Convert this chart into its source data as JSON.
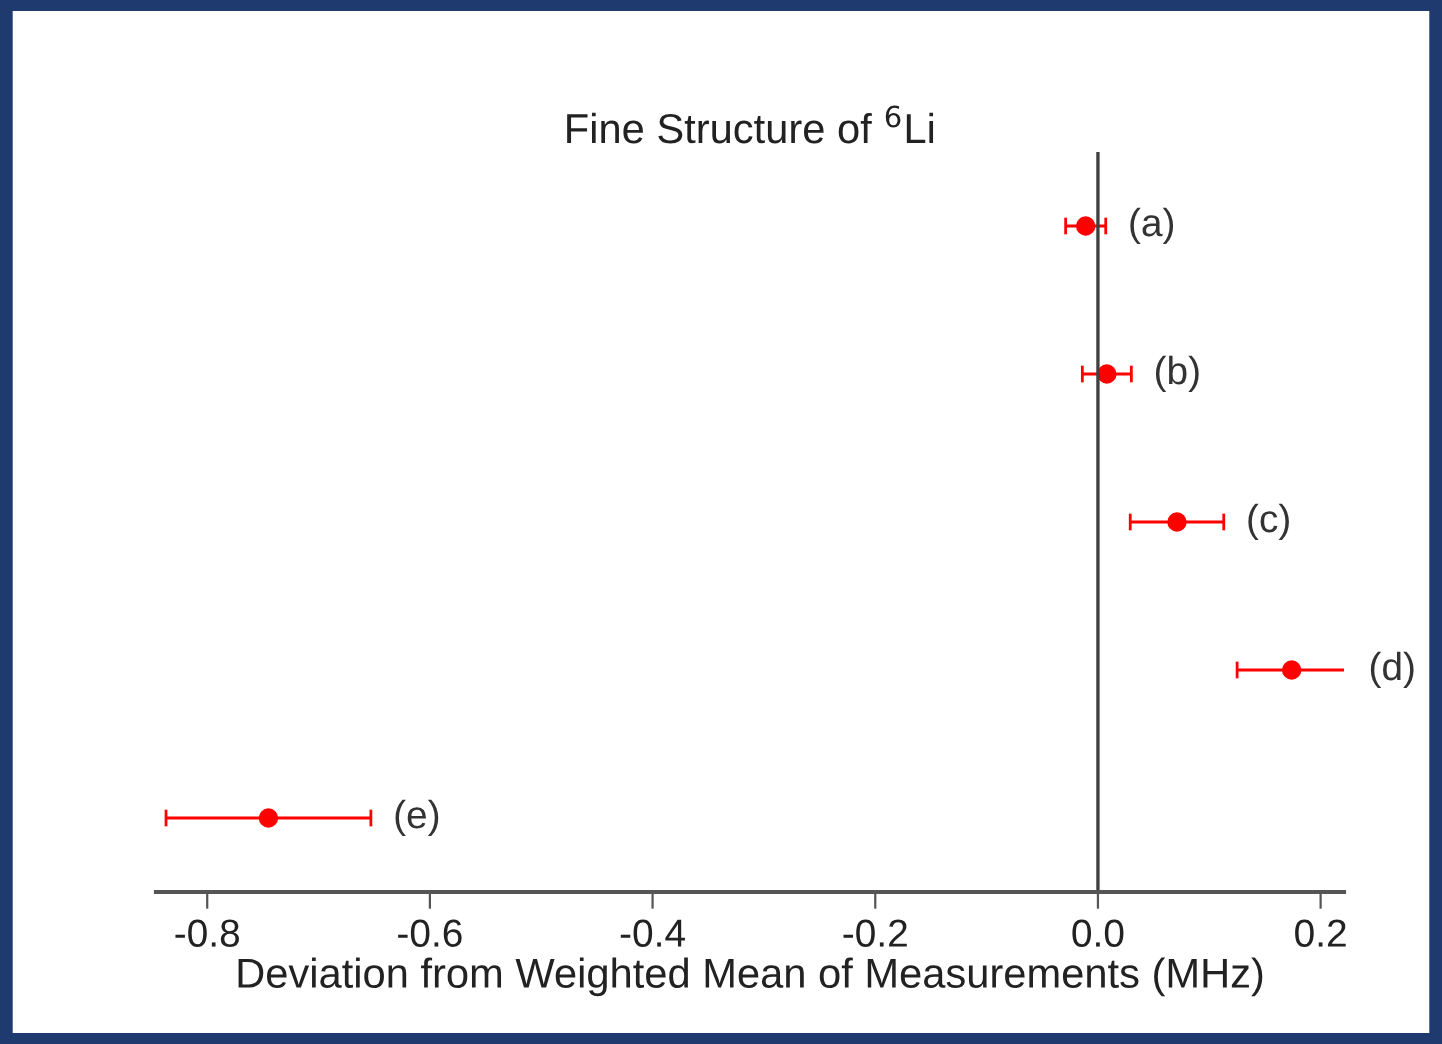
{
  "chart_data": {
    "type": "scatter",
    "orientation": "horizontal",
    "title": "Fine Structure of $^{6}$Li",
    "xlabel": "Deviation from Weighted Mean of Measurements (MHz)",
    "categories": [
      null,
      null,
      null,
      null,
      null
    ],
    "values": [
      -0.011,
      0.008,
      0.071,
      0.174,
      -0.745
    ],
    "errors": [
      0.018,
      0.022,
      0.042,
      0.049,
      0.092
    ],
    "color": "#ff0000",
    "marker": "circle",
    "grid": false,
    "tick_labels": "x",
    "annotations": [
      "(a)",
      "(b)",
      "(c)",
      "(d)",
      "(e)"
    ],
    "ref_lines": [
      {
        "axis": "x",
        "value": 0,
        "color": "#404040"
      }
    ],
    "xlim": [
      -0.846,
      0.221
    ],
    "xticks": [
      -0.8,
      -0.6,
      -0.4,
      -0.2,
      {
        "value": 0,
        "label": "0.0"
      },
      0.2
    ]
  }
}
